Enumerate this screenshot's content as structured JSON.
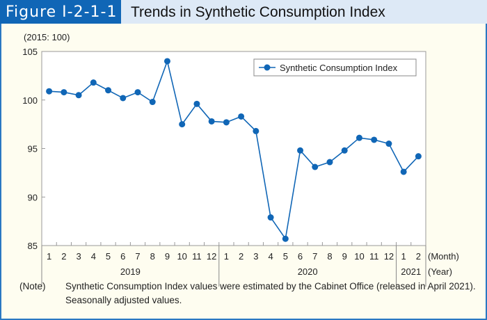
{
  "header": {
    "figure_label": "Figure I-2-1-1",
    "title": "Trends in Synthetic Consumption Index"
  },
  "note": {
    "label": "(Note)",
    "text": "Synthetic Consumption Index values were estimated by the Cabinet Office (released in April 2021). Seasonally adjusted values."
  },
  "colors": {
    "series": "#1066b6",
    "header_bg": "#1066b6",
    "panel_bg": "#fefdf0"
  },
  "chart_data": {
    "type": "line",
    "title": "Trends in Synthetic Consumption Index",
    "unit_label": "(2015: 100)",
    "xlabel_month": "(Month)",
    "xlabel_year": "(Year)",
    "ylim": [
      85,
      105
    ],
    "yticks": [
      85,
      90,
      95,
      100,
      105
    ],
    "legend": "top-right",
    "grid": false,
    "years": [
      {
        "label": "2019",
        "months": 12
      },
      {
        "label": "2020",
        "months": 12
      },
      {
        "label": "2021",
        "months": 2
      }
    ],
    "categories": [
      "1",
      "2",
      "3",
      "4",
      "5",
      "6",
      "7",
      "8",
      "9",
      "10",
      "11",
      "12",
      "1",
      "2",
      "3",
      "4",
      "5",
      "6",
      "7",
      "8",
      "9",
      "10",
      "11",
      "12",
      "1",
      "2"
    ],
    "series": [
      {
        "name": "Synthetic Consumption Index",
        "values": [
          100.9,
          100.8,
          100.5,
          101.8,
          101.0,
          100.2,
          100.8,
          99.8,
          104.0,
          97.5,
          99.6,
          97.8,
          97.7,
          98.3,
          96.8,
          87.9,
          85.7,
          94.8,
          93.1,
          93.6,
          94.8,
          96.1,
          95.9,
          95.5,
          92.6,
          94.2
        ]
      }
    ]
  }
}
